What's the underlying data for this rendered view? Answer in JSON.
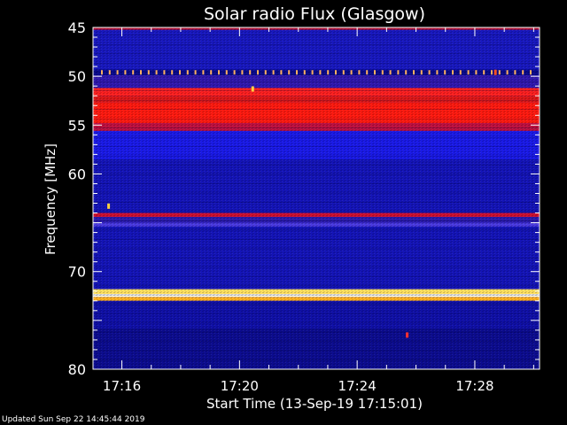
{
  "chart_data": {
    "type": "heatmap",
    "title": "Solar radio Flux (Glasgow)",
    "xlabel": "Start Time (13-Sep-19 17:15:01)",
    "ylabel": "Frequency [MHz]",
    "x_start_minutes": 15.02,
    "x_end_minutes": 30.2,
    "x_ticks": [
      {
        "label": "17:16",
        "minute": 16
      },
      {
        "label": "17:20",
        "minute": 20
      },
      {
        "label": "17:24",
        "minute": 24
      },
      {
        "label": "17:28",
        "minute": 28
      }
    ],
    "ylim": [
      45,
      80
    ],
    "y_reversed": true,
    "y_ticks": [
      45,
      50,
      55,
      60,
      65,
      70,
      75,
      80
    ],
    "y_tick_labels": [
      "45",
      "50",
      "55",
      "60",
      "",
      "70",
      "",
      "80"
    ],
    "background_color": "#1a1ac8",
    "bands": [
      {
        "from": 45.0,
        "to": 45.25,
        "color": "#b01030"
      },
      {
        "from": 45.25,
        "to": 49.3,
        "color": "#1818c0"
      },
      {
        "from": 49.3,
        "to": 49.9,
        "color": "#0a0a90",
        "note": "row of bright markers"
      },
      {
        "from": 49.9,
        "to": 51.2,
        "color": "#3018b0"
      },
      {
        "from": 51.2,
        "to": 52.0,
        "color": "#ff2020"
      },
      {
        "from": 52.0,
        "to": 52.7,
        "color": "#e01818"
      },
      {
        "from": 52.7,
        "to": 54.8,
        "color": "#ff1a10"
      },
      {
        "from": 54.8,
        "to": 55.6,
        "color": "#c01040"
      },
      {
        "from": 55.6,
        "to": 58.5,
        "color": "#1a1ae8"
      },
      {
        "from": 58.5,
        "to": 64.0,
        "color": "#1414b8"
      },
      {
        "from": 64.0,
        "to": 64.4,
        "color": "#d01030"
      },
      {
        "from": 64.4,
        "to": 65.0,
        "color": "#2a1ab0"
      },
      {
        "from": 65.0,
        "to": 65.4,
        "color": "#4a3ae0"
      },
      {
        "from": 65.4,
        "to": 71.8,
        "color": "#1414b8"
      },
      {
        "from": 71.8,
        "to": 72.3,
        "color": "#ffe060"
      },
      {
        "from": 72.3,
        "to": 72.6,
        "color": "#fffff0"
      },
      {
        "from": 72.6,
        "to": 73.0,
        "color": "#ffb020"
      },
      {
        "from": 73.0,
        "to": 75.8,
        "color": "#1010a8"
      },
      {
        "from": 75.8,
        "to": 80.0,
        "color": "#0c0c90"
      }
    ],
    "marker_row": {
      "freq": 49.6,
      "color": "#ffb060",
      "count": 56
    },
    "spots": [
      {
        "minute": 20.45,
        "freq": 51.3,
        "color": "#ffd040"
      },
      {
        "minute": 15.55,
        "freq": 63.3,
        "color": "#ffd040"
      },
      {
        "minute": 28.7,
        "freq": 49.6,
        "color": "#ff5020"
      },
      {
        "minute": 25.7,
        "freq": 76.5,
        "color": "#ff3030"
      }
    ]
  },
  "footer": {
    "updated": "Updated Sun Sep 22 14:45:44 2019"
  }
}
